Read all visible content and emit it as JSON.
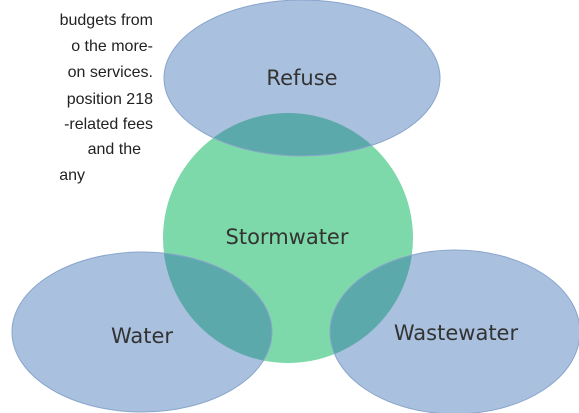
{
  "text": {
    "lines": [
      "budgets from",
      "o the more-",
      "on services.",
      "position 218",
      "-related fees",
      "and the",
      "any"
    ]
  },
  "nodes": [
    {
      "label": "Refuse"
    },
    {
      "label": "Stormwater"
    },
    {
      "label": "Water"
    },
    {
      "label": "Wastewater"
    }
  ]
}
